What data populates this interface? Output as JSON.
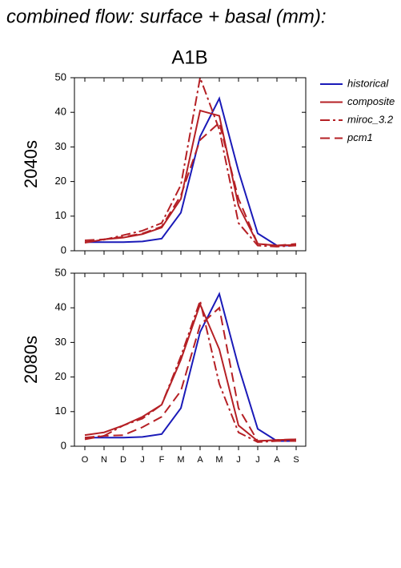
{
  "chart_data": [
    {
      "type": "line",
      "title": "combined flow: surface + basal (mm):",
      "subtitle": "A1B",
      "ylabel": "2040s",
      "ylim": [
        0,
        50
      ],
      "yticks": [
        0,
        10,
        20,
        30,
        40,
        50
      ],
      "series": [
        {
          "name": "historical",
          "color": "#1a1ab8",
          "dash": "solid",
          "values": [
            2.5,
            2.5,
            2.5,
            2.7,
            3.5,
            11,
            33,
            44,
            23,
            5,
            1.5,
            1.5
          ]
        },
        {
          "name": "composite",
          "color": "#b52025",
          "dash": "solid",
          "values": [
            2.3,
            3.3,
            3.8,
            4.8,
            6.7,
            15,
            40.5,
            39,
            13,
            2,
            1.5,
            1.7
          ]
        },
        {
          "name": "miroc_3.2",
          "color": "#b52025",
          "dash": "dash-dot",
          "values": [
            2.5,
            3.2,
            4.5,
            5.8,
            8,
            19,
            50,
            35,
            8,
            1.5,
            1.2,
            1.5
          ]
        },
        {
          "name": "pcm1",
          "color": "#b52025",
          "dash": "dash",
          "values": [
            3,
            3.3,
            4,
            5,
            7,
            16,
            32,
            37,
            15,
            2,
            1.5,
            2
          ]
        }
      ]
    },
    {
      "type": "line",
      "ylabel": "2080s",
      "categories": [
        "O",
        "N",
        "D",
        "J",
        "F",
        "M",
        "A",
        "M",
        "J",
        "J",
        "A",
        "S"
      ],
      "ylim": [
        0,
        50
      ],
      "yticks": [
        0,
        10,
        20,
        30,
        40,
        50
      ],
      "series": [
        {
          "color": "#1a1ab8",
          "dash": "solid",
          "values": [
            2.5,
            2.5,
            2.5,
            2.7,
            3.5,
            11,
            33,
            44,
            23,
            5,
            1.5,
            1.5
          ]
        },
        {
          "color": "#b52025",
          "dash": "solid",
          "values": [
            3.2,
            4,
            6,
            8.5,
            12,
            25,
            41,
            28,
            6,
            1.5,
            1.8,
            2
          ]
        },
        {
          "color": "#b52025",
          "dash": "dash-dot",
          "values": [
            2.5,
            3,
            6,
            8,
            12,
            26,
            42,
            18,
            4,
            1.2,
            1.5,
            1.5
          ]
        },
        {
          "color": "#b52025",
          "dash": "dash",
          "values": [
            2,
            3,
            3.2,
            5.5,
            8.5,
            16,
            35,
            40,
            11,
            1.5,
            1.8,
            2
          ]
        }
      ]
    }
  ]
}
